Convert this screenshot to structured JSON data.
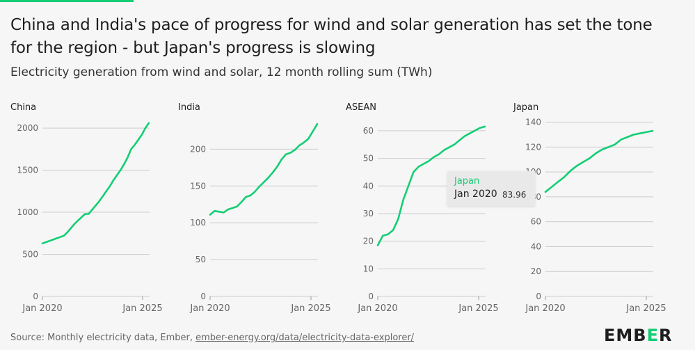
{
  "title": "China and India's pace of progress for wind and solar generation has set the tone for the region - but Japan's progress is slowing",
  "subtitle": "Electricity generation from wind and solar, 12 month rolling sum (TWh)",
  "source": {
    "prefix": "Source: Monthly electricity data, Ember,",
    "link_text": "ember-energy.org/data/electricity-data-explorer/"
  },
  "logo": {
    "left": "EMB",
    "mark": "E",
    "right": "R"
  },
  "colors": {
    "line": "#13ce74",
    "grid": "#cccccc",
    "text": "#666666"
  },
  "tooltip": {
    "series": "Japan",
    "date": "Jan 2020",
    "value": "83.96"
  },
  "chart_data": [
    {
      "type": "line",
      "title": "China",
      "x_labels": [
        "Jan 2020",
        "Jan 2025"
      ],
      "yticks": [
        0,
        500,
        1000,
        1500,
        2000
      ],
      "ylim": [
        0,
        2100
      ],
      "series": [
        {
          "values": [
            630,
            645,
            660,
            675,
            690,
            705,
            720,
            760,
            810,
            860,
            900,
            940,
            980,
            980,
            1030,
            1080,
            1130,
            1190,
            1250,
            1310,
            1380,
            1440,
            1500,
            1570,
            1650,
            1750,
            1800,
            1860,
            1920,
            2000,
            2060
          ]
        }
      ]
    },
    {
      "type": "line",
      "title": "India",
      "x_labels": [
        "Jan 2020",
        "Jan 2025"
      ],
      "yticks": [
        0,
        50,
        100,
        150,
        200
      ],
      "ylim": [
        0,
        240
      ],
      "series": [
        {
          "values": [
            111,
            116,
            115,
            114,
            118,
            120,
            122,
            128,
            135,
            137,
            142,
            149,
            155,
            161,
            168,
            176,
            186,
            193,
            195,
            199,
            205,
            209,
            214,
            224,
            234
          ]
        }
      ]
    },
    {
      "type": "line",
      "title": "ASEAN",
      "x_labels": [
        "Jan 2020",
        "Jan 2025"
      ],
      "yticks": [
        0,
        10,
        20,
        30,
        40,
        50,
        60
      ],
      "ylim": [
        0,
        64
      ],
      "series": [
        {
          "values": [
            18.5,
            22,
            22.5,
            24,
            28,
            35,
            40,
            45,
            47,
            48,
            49,
            50.5,
            51.5,
            53,
            54,
            55,
            56.5,
            58,
            59,
            60,
            61,
            61.5
          ]
        }
      ]
    },
    {
      "type": "line",
      "title": "Japan",
      "x_labels": [
        "Jan 2020",
        "Jan 2025"
      ],
      "yticks": [
        0,
        20,
        40,
        60,
        80,
        100,
        120,
        140
      ],
      "ylim": [
        0,
        142
      ],
      "series": [
        {
          "name": "Japan",
          "values": [
            83.96,
            88,
            92,
            96,
            101,
            105,
            108,
            111,
            115,
            118,
            120,
            122,
            126,
            128,
            130,
            131,
            132,
            133
          ]
        }
      ]
    }
  ]
}
